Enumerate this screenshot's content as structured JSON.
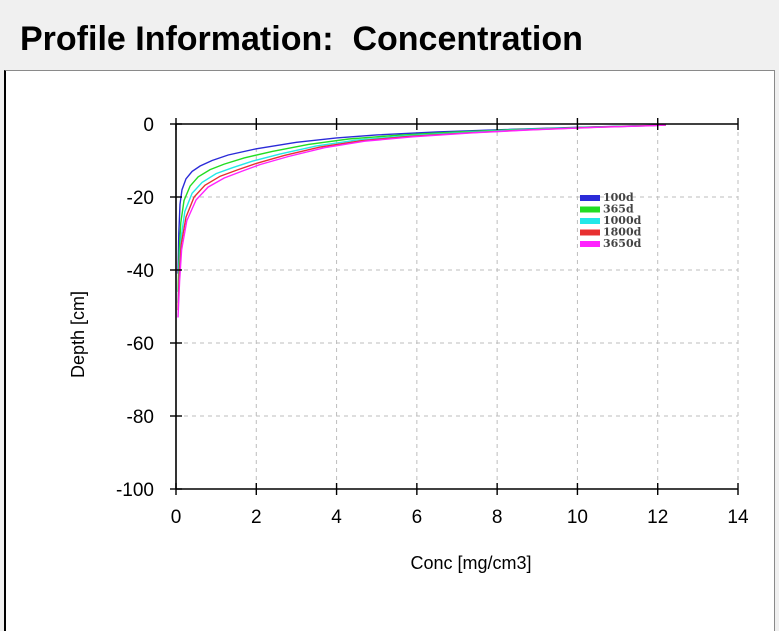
{
  "window": {
    "title": "Profile Information:  Concentration"
  },
  "chart_data": {
    "type": "line",
    "title": "",
    "xlabel": "Conc [mg/cm3]",
    "ylabel": "Depth [cm]",
    "xlim": [
      0,
      14
    ],
    "ylim": [
      -100,
      0
    ],
    "x_ticks": [
      0,
      2,
      4,
      6,
      8,
      10,
      12,
      14
    ],
    "y_ticks": [
      0,
      -20,
      -40,
      -60,
      -80,
      -100
    ],
    "grid": true,
    "legend_position": "upper-right",
    "series": [
      {
        "name": "100d",
        "color": "#2b2bd8",
        "points": [
          [
            0.05,
            -41
          ],
          [
            0.07,
            -30
          ],
          [
            0.1,
            -22
          ],
          [
            0.15,
            -18
          ],
          [
            0.25,
            -15
          ],
          [
            0.4,
            -13
          ],
          [
            0.6,
            -11.5
          ],
          [
            0.9,
            -10
          ],
          [
            1.3,
            -8.5
          ],
          [
            2.0,
            -6.8
          ],
          [
            3.0,
            -5
          ],
          [
            4.0,
            -3.8
          ],
          [
            5.0,
            -3
          ],
          [
            6.5,
            -2.2
          ],
          [
            8.0,
            -1.6
          ],
          [
            10.0,
            -0.9
          ],
          [
            11.5,
            -0.5
          ],
          [
            12.2,
            -0.3
          ]
        ]
      },
      {
        "name": "365d",
        "color": "#22dd22",
        "points": [
          [
            0.05,
            -46
          ],
          [
            0.08,
            -35
          ],
          [
            0.12,
            -27
          ],
          [
            0.2,
            -21
          ],
          [
            0.35,
            -17
          ],
          [
            0.55,
            -14.5
          ],
          [
            0.85,
            -12.5
          ],
          [
            1.2,
            -11
          ],
          [
            1.7,
            -9.3
          ],
          [
            2.4,
            -7.5
          ],
          [
            3.3,
            -5.6
          ],
          [
            4.3,
            -4.1
          ],
          [
            5.5,
            -3.1
          ],
          [
            7.0,
            -2.2
          ],
          [
            8.5,
            -1.5
          ],
          [
            10.2,
            -0.9
          ],
          [
            11.6,
            -0.5
          ],
          [
            12.2,
            -0.3
          ]
        ]
      },
      {
        "name": "1000d",
        "color": "#22e8e8",
        "points": [
          [
            0.05,
            -49
          ],
          [
            0.08,
            -39
          ],
          [
            0.13,
            -31
          ],
          [
            0.22,
            -24
          ],
          [
            0.4,
            -19
          ],
          [
            0.65,
            -16
          ],
          [
            1.0,
            -13.6
          ],
          [
            1.4,
            -12
          ],
          [
            1.9,
            -10.2
          ],
          [
            2.6,
            -8.2
          ],
          [
            3.5,
            -6
          ],
          [
            4.5,
            -4.4
          ],
          [
            5.7,
            -3.3
          ],
          [
            7.2,
            -2.3
          ],
          [
            8.7,
            -1.5
          ],
          [
            10.3,
            -0.9
          ],
          [
            11.7,
            -0.5
          ],
          [
            12.2,
            -0.3
          ]
        ]
      },
      {
        "name": "1800d",
        "color": "#e83030",
        "points": [
          [
            0.05,
            -51
          ],
          [
            0.08,
            -41
          ],
          [
            0.13,
            -33
          ],
          [
            0.25,
            -25.5
          ],
          [
            0.45,
            -20
          ],
          [
            0.72,
            -16.8
          ],
          [
            1.1,
            -14.3
          ],
          [
            1.55,
            -12.5
          ],
          [
            2.0,
            -10.8
          ],
          [
            2.7,
            -8.6
          ],
          [
            3.6,
            -6.3
          ],
          [
            4.6,
            -4.6
          ],
          [
            5.8,
            -3.4
          ],
          [
            7.3,
            -2.4
          ],
          [
            8.8,
            -1.6
          ],
          [
            10.4,
            -0.9
          ],
          [
            11.7,
            -0.5
          ],
          [
            12.2,
            -0.3
          ]
        ]
      },
      {
        "name": "3650d",
        "color": "#ff22ff",
        "points": [
          [
            0.05,
            -53
          ],
          [
            0.09,
            -43
          ],
          [
            0.14,
            -34.5
          ],
          [
            0.27,
            -26.5
          ],
          [
            0.5,
            -20.8
          ],
          [
            0.8,
            -17.3
          ],
          [
            1.2,
            -14.8
          ],
          [
            1.65,
            -12.9
          ],
          [
            2.1,
            -11.1
          ],
          [
            2.8,
            -8.9
          ],
          [
            3.7,
            -6.5
          ],
          [
            4.7,
            -4.7
          ],
          [
            5.9,
            -3.5
          ],
          [
            7.4,
            -2.4
          ],
          [
            8.9,
            -1.6
          ],
          [
            10.5,
            -0.9
          ],
          [
            11.8,
            -0.5
          ],
          [
            12.2,
            -0.3
          ]
        ]
      }
    ]
  }
}
